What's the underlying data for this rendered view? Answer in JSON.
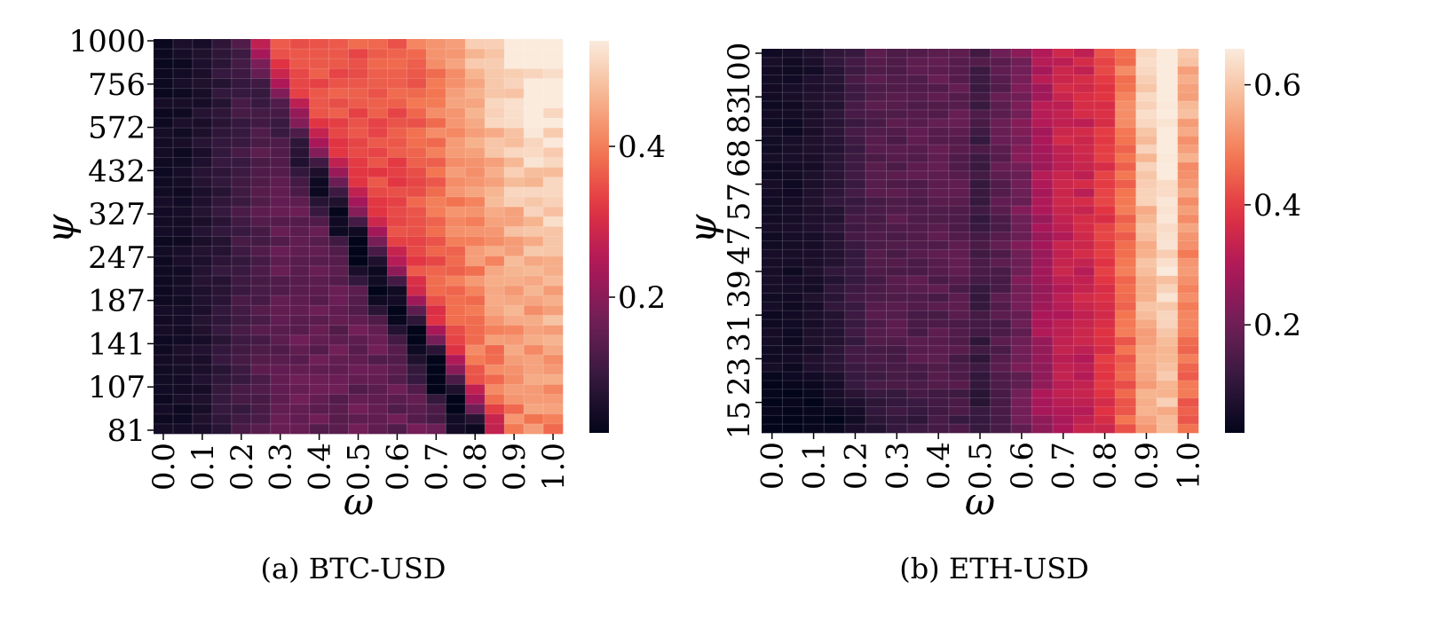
{
  "chart_data": [
    {
      "type": "heatmap",
      "caption": "(a) BTC-USD",
      "xlabel": "ω",
      "ylabel": "ψ",
      "x_tick_labels": [
        "0.0",
        "0.1",
        "0.2",
        "0.3",
        "0.4",
        "0.5",
        "0.6",
        "0.7",
        "0.8",
        "0.9",
        "1.0"
      ],
      "y_tick_labels": [
        "1000",
        "756",
        "572",
        "432",
        "327",
        "247",
        "187",
        "141",
        "107",
        "81"
      ],
      "n_cols": 21,
      "n_rows": 40,
      "colorbar": {
        "min": 0.02,
        "max": 0.54,
        "tick_values": [
          0.2,
          0.4
        ],
        "tick_labels": [
          "0.2",
          "0.4"
        ]
      },
      "grid": true,
      "colormap": "rocket",
      "cmap_stops": [
        "#03051a",
        "#35193e",
        "#701f57",
        "#ad1759",
        "#e13342",
        "#f37651",
        "#f6b48f",
        "#faebdd"
      ]
    },
    {
      "type": "heatmap",
      "caption": "(b) ETH-USD",
      "xlabel": "ω",
      "ylabel": "ψ",
      "x_tick_labels": [
        "0.0",
        "0.1",
        "0.2",
        "0.3",
        "0.4",
        "0.5",
        "0.6",
        "0.7",
        "0.8",
        "0.9",
        "1.0"
      ],
      "y_tick_labels": [
        "100",
        "83",
        "68",
        "57",
        "47",
        "39",
        "31",
        "23",
        "15"
      ],
      "n_cols": 21,
      "n_rows": 44,
      "colorbar": {
        "min": 0.02,
        "max": 0.66,
        "tick_values": [
          0.2,
          0.4,
          0.6
        ],
        "tick_labels": [
          "0.2",
          "0.4",
          "0.6"
        ]
      },
      "grid": true,
      "colormap": "rocket",
      "cmap_stops": [
        "#03051a",
        "#35193e",
        "#701f57",
        "#ad1759",
        "#e13342",
        "#f37651",
        "#f6b48f",
        "#faebdd"
      ]
    }
  ]
}
